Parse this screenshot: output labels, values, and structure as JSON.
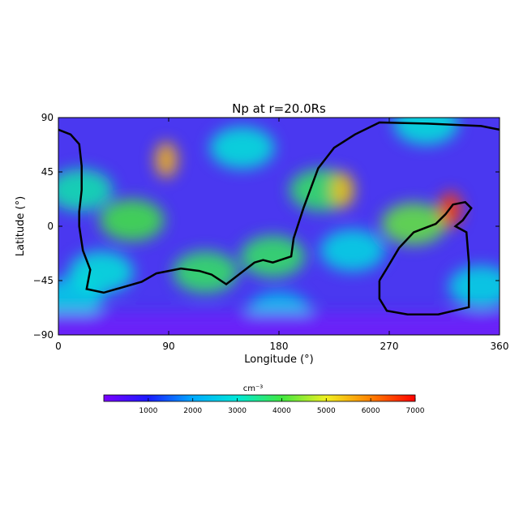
{
  "chart_data": {
    "type": "heatmap",
    "title": "Np at r=20.0Rs",
    "xlabel": "Longitude (°)",
    "ylabel": "Latitude (°)",
    "xlim": [
      0,
      360
    ],
    "ylim": [
      -90,
      90
    ],
    "xticks": [
      0,
      90,
      180,
      270,
      360
    ],
    "yticks": [
      90,
      45,
      0,
      -45,
      -90
    ],
    "xtick_labels": [
      "0",
      "90",
      "180",
      "270",
      "360"
    ],
    "ytick_labels": [
      "90",
      "45",
      "0",
      "−45",
      "−90"
    ],
    "colorbar": {
      "unit": "cm⁻³",
      "range": [
        0,
        7000
      ],
      "ticks": [
        1000,
        2000,
        3000,
        4000,
        5000,
        6000,
        7000
      ],
      "colormap": [
        "#7a00ff",
        "#1a1aff",
        "#00aaff",
        "#00e8d8",
        "#40e840",
        "#f0f020",
        "#ff8000",
        "#ff0000"
      ]
    },
    "background_color": "#4a38f0",
    "features": [
      {
        "kind": "high",
        "lon": 88,
        "lat": 55,
        "value": 5500
      },
      {
        "kind": "high",
        "lon": 232,
        "lat": 30,
        "value": 5500
      },
      {
        "kind": "high",
        "lon": 320,
        "lat": 14,
        "value": 6500
      },
      {
        "kind": "band",
        "lon": 18,
        "lat": 30,
        "value": 3300
      },
      {
        "kind": "band",
        "lon": 60,
        "lat": 5,
        "value": 4000
      },
      {
        "kind": "band",
        "lon": 120,
        "lat": -38,
        "value": 3800
      },
      {
        "kind": "band",
        "lon": 175,
        "lat": -25,
        "value": 3800
      },
      {
        "kind": "band",
        "lon": 215,
        "lat": 30,
        "value": 3800
      },
      {
        "kind": "band",
        "lon": 290,
        "lat": 2,
        "value": 4200
      },
      {
        "kind": "band",
        "lon": 35,
        "lat": -38,
        "value": 3000
      },
      {
        "kind": "band",
        "lon": 150,
        "lat": 65,
        "value": 3000
      },
      {
        "kind": "band",
        "lon": 240,
        "lat": -20,
        "value": 2800
      },
      {
        "kind": "band",
        "lon": 300,
        "lat": 85,
        "value": 3000
      },
      {
        "kind": "band",
        "lon": 180,
        "lat": -72,
        "value": 2500
      },
      {
        "kind": "band",
        "lon": 345,
        "lat": -50,
        "value": 2800
      },
      {
        "kind": "band",
        "lon": 10,
        "lat": -60,
        "value": 2700
      }
    ],
    "neutral_line": [
      [
        0,
        80
      ],
      [
        10,
        76
      ],
      [
        17,
        68
      ],
      [
        19,
        50
      ],
      [
        19,
        30
      ],
      [
        17,
        12
      ],
      [
        17,
        0
      ],
      [
        20,
        -20
      ],
      [
        26,
        -36
      ],
      [
        23,
        -52
      ],
      [
        37,
        -55
      ],
      [
        68,
        -46
      ],
      [
        80,
        -39
      ],
      [
        100,
        -35
      ],
      [
        115,
        -37
      ],
      [
        125,
        -40
      ],
      [
        137,
        -48
      ],
      [
        160,
        -30
      ],
      [
        167,
        -28
      ],
      [
        175,
        -30
      ],
      [
        190,
        -25
      ],
      [
        192,
        -10
      ],
      [
        200,
        15
      ],
      [
        212,
        48
      ],
      [
        225,
        65
      ],
      [
        242,
        76
      ],
      [
        262,
        86
      ],
      [
        300,
        85
      ],
      [
        345,
        83
      ],
      [
        360,
        80
      ]
    ],
    "neutral_line_loop": [
      [
        262,
        -45
      ],
      [
        262,
        -60
      ],
      [
        268,
        -70
      ],
      [
        285,
        -73
      ],
      [
        310,
        -73
      ],
      [
        335,
        -67
      ],
      [
        335,
        -30
      ],
      [
        333,
        -5
      ],
      [
        324,
        0
      ],
      [
        330,
        5
      ],
      [
        337,
        15
      ],
      [
        332,
        20
      ],
      [
        322,
        18
      ],
      [
        316,
        10
      ],
      [
        308,
        2
      ],
      [
        290,
        -5
      ],
      [
        278,
        -18
      ],
      [
        268,
        -35
      ],
      [
        262,
        -45
      ]
    ]
  }
}
